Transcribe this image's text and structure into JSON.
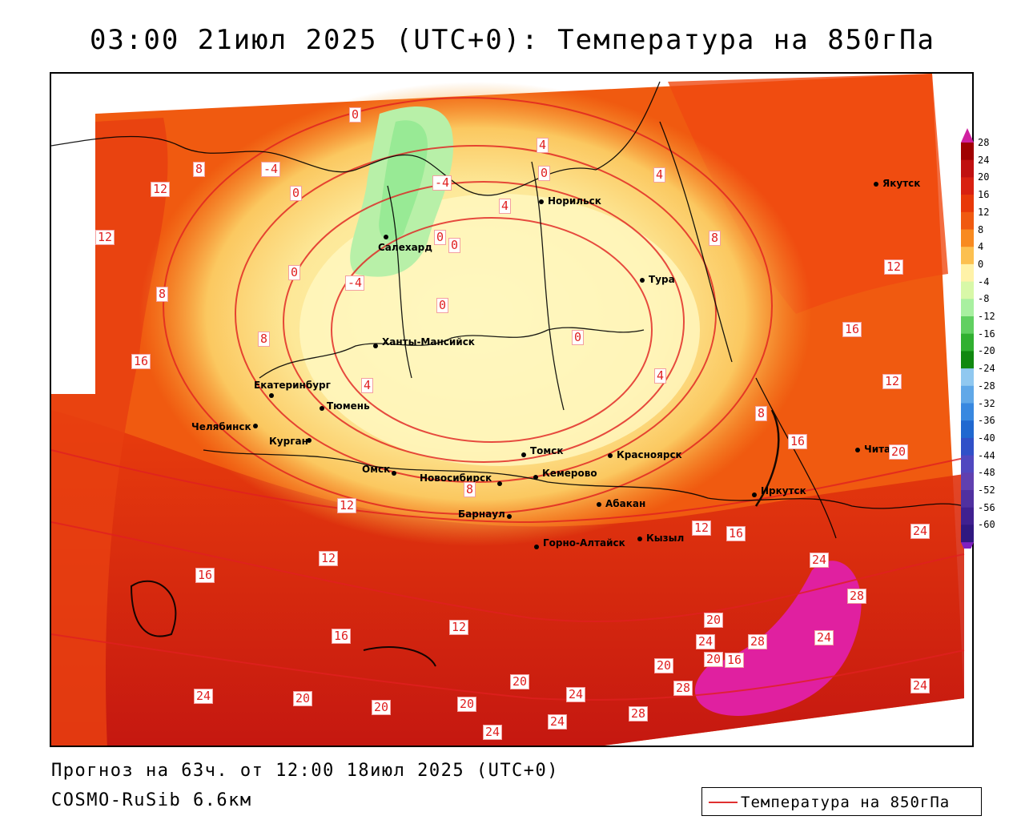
{
  "title": "03:00 21июл 2025 (UTC+0): Температура на 850гПа",
  "footer": {
    "forecast": "Прогноз на 63ч. от 12:00 18июл 2025 (UTC+0)",
    "model": "COSMO-RuSib 6.6км"
  },
  "legend": {
    "label": "Температура на 850гПа",
    "line_color": "#e03030"
  },
  "colorbar": {
    "labels": [
      "28",
      "24",
      "20",
      "16",
      "12",
      "8",
      "4",
      "0",
      "-4",
      "-8",
      "-12",
      "-16",
      "-20",
      "-24",
      "-28",
      "-32",
      "-36",
      "-40",
      "-44",
      "-48",
      "-52",
      "-56",
      "-60"
    ],
    "colors": [
      "#a00000",
      "#c01010",
      "#d82010",
      "#e83808",
      "#f05a10",
      "#f88a20",
      "#fcc050",
      "#fff2a8",
      "#d8f8a8",
      "#a8f0a0",
      "#60d060",
      "#30b030",
      "#108810",
      "#90c8f0",
      "#60a8e8",
      "#3888e0",
      "#2068d0",
      "#3050c8",
      "#5048c0",
      "#6040b0",
      "#5030a0",
      "#402090",
      "#301880"
    ]
  },
  "cities": [
    {
      "name": "Якутск"
    },
    {
      "name": "Норильск"
    },
    {
      "name": "Салехард"
    },
    {
      "name": "Тура"
    },
    {
      "name": "Ханты-Мансийск"
    },
    {
      "name": "Екатеринбург"
    },
    {
      "name": "Тюмень"
    },
    {
      "name": "Челябинск"
    },
    {
      "name": "Курган"
    },
    {
      "name": "Омск"
    },
    {
      "name": "Новосибирск"
    },
    {
      "name": "Томск"
    },
    {
      "name": "Кемерово"
    },
    {
      "name": "Красноярск"
    },
    {
      "name": "Барнаул"
    },
    {
      "name": "Абакан"
    },
    {
      "name": "Иркутск"
    },
    {
      "name": "Чита"
    },
    {
      "name": "Кызыл"
    },
    {
      "name": "Горно-Алтайск"
    }
  ],
  "contour_labels": [
    "0",
    "8",
    "-4",
    "12",
    "4",
    "0",
    "8",
    "12",
    "8",
    "8",
    "-4",
    "0",
    "0",
    "0",
    "-4",
    "4",
    "4",
    "0",
    "12",
    "16",
    "12",
    "8",
    "4",
    "0",
    "0",
    "16",
    "8",
    "4",
    "8",
    "12",
    "16",
    "20",
    "12",
    "12",
    "16",
    "12",
    "16",
    "16",
    "20",
    "24",
    "24",
    "28",
    "20",
    "24",
    "28",
    "16",
    "24",
    "20",
    "24",
    "20",
    "20",
    "20",
    "20",
    "24",
    "24",
    "24",
    "28",
    "28",
    "24"
  ]
}
